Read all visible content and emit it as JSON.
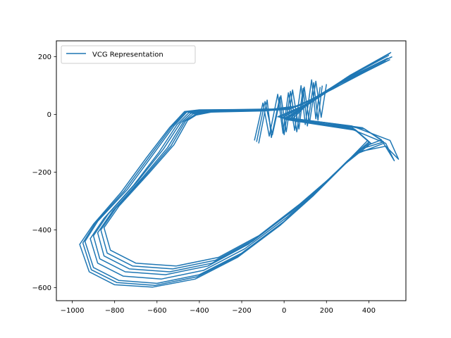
{
  "chart_data": {
    "type": "line",
    "title": "",
    "xlabel": "",
    "ylabel": "",
    "xlim": [
      -1075,
      575
    ],
    "ylim": [
      -645,
      255
    ],
    "xticks": [
      -1000,
      -800,
      -600,
      -400,
      -200,
      0,
      200,
      400
    ],
    "yticks": [
      -600,
      -400,
      -200,
      0,
      200
    ],
    "xtick_labels": [
      "−1000",
      "−800",
      "−600",
      "−400",
      "−200",
      "0",
      "200",
      "400"
    ],
    "ytick_labels": [
      "−600",
      "−400",
      "−200",
      "0",
      "200"
    ],
    "grid": false,
    "legend_position": "upper-left",
    "series": [
      {
        "name": "VCG Representation",
        "color": "#1f77b4",
        "loops": [
          [
            [
              500,
              212
            ],
            [
              350,
              150
            ],
            [
              250,
              105
            ],
            [
              150,
              60
            ],
            [
              60,
              28
            ],
            [
              -60,
              18
            ],
            [
              -250,
              15
            ],
            [
              -390,
              14
            ],
            [
              -460,
              8
            ],
            [
              -520,
              -40
            ],
            [
              -620,
              -140
            ],
            [
              -740,
              -260
            ],
            [
              -880,
              -370
            ],
            [
              -940,
              -440
            ],
            [
              -900,
              -530
            ],
            [
              -780,
              -575
            ],
            [
              -600,
              -585
            ],
            [
              -400,
              -555
            ],
            [
              -200,
              -480
            ],
            [
              0,
              -370
            ],
            [
              150,
              -270
            ],
            [
              300,
              -160
            ],
            [
              400,
              -95
            ],
            [
              330,
              -50
            ],
            [
              150,
              -30
            ],
            [
              0,
              -15
            ],
            [
              120,
              40
            ],
            [
              300,
              130
            ],
            [
              500,
              212
            ]
          ],
          [
            [
              505,
              215
            ],
            [
              360,
              155
            ],
            [
              260,
              110
            ],
            [
              160,
              62
            ],
            [
              70,
              30
            ],
            [
              -50,
              19
            ],
            [
              -240,
              17
            ],
            [
              -400,
              16
            ],
            [
              -470,
              10
            ],
            [
              -540,
              -45
            ],
            [
              -650,
              -150
            ],
            [
              -770,
              -270
            ],
            [
              -900,
              -380
            ],
            [
              -965,
              -450
            ],
            [
              -920,
              -545
            ],
            [
              -800,
              -590
            ],
            [
              -620,
              -598
            ],
            [
              -420,
              -570
            ],
            [
              -220,
              -495
            ],
            [
              -20,
              -385
            ],
            [
              140,
              -280
            ],
            [
              290,
              -170
            ],
            [
              410,
              -100
            ],
            [
              340,
              -55
            ],
            [
              160,
              -35
            ],
            [
              10,
              -18
            ],
            [
              130,
              45
            ],
            [
              310,
              135
            ],
            [
              505,
              215
            ]
          ],
          [
            [
              495,
              205
            ],
            [
              340,
              145
            ],
            [
              240,
              100
            ],
            [
              140,
              56
            ],
            [
              50,
              26
            ],
            [
              -70,
              16
            ],
            [
              -260,
              13
            ],
            [
              -380,
              12
            ],
            [
              -450,
              6
            ],
            [
              -505,
              -35
            ],
            [
              -590,
              -130
            ],
            [
              -710,
              -245
            ],
            [
              -850,
              -360
            ],
            [
              -915,
              -430
            ],
            [
              -880,
              -515
            ],
            [
              -760,
              -560
            ],
            [
              -580,
              -570
            ],
            [
              -380,
              -540
            ],
            [
              -185,
              -465
            ],
            [
              15,
              -355
            ],
            [
              165,
              -258
            ],
            [
              315,
              -150
            ],
            [
              395,
              -90
            ],
            [
              320,
              -45
            ],
            [
              140,
              -28
            ],
            [
              -10,
              -12
            ],
            [
              110,
              36
            ],
            [
              290,
              125
            ],
            [
              495,
              205
            ]
          ],
          [
            [
              510,
              200
            ],
            [
              345,
              140
            ],
            [
              235,
              95
            ],
            [
              130,
              52
            ],
            [
              40,
              24
            ],
            [
              -80,
              15
            ],
            [
              -270,
              12
            ],
            [
              -370,
              11
            ],
            [
              -440,
              4
            ],
            [
              -490,
              -30
            ],
            [
              -570,
              -120
            ],
            [
              -690,
              -230
            ],
            [
              -830,
              -345
            ],
            [
              -900,
              -420
            ],
            [
              -870,
              -500
            ],
            [
              -750,
              -545
            ],
            [
              -560,
              -555
            ],
            [
              -360,
              -525
            ],
            [
              -170,
              -450
            ],
            [
              30,
              -340
            ],
            [
              180,
              -245
            ],
            [
              330,
              -140
            ],
            [
              470,
              -100
            ],
            [
              520,
              -160
            ],
            [
              480,
              -100
            ],
            [
              300,
              -45
            ],
            [
              120,
              -25
            ],
            [
              -20,
              -10
            ],
            [
              100,
              32
            ],
            [
              280,
              120
            ],
            [
              510,
              200
            ]
          ],
          [
            [
              490,
              195
            ],
            [
              330,
              135
            ],
            [
              225,
              92
            ],
            [
              125,
              50
            ],
            [
              35,
              22
            ],
            [
              -90,
              14
            ],
            [
              -280,
              11
            ],
            [
              -360,
              10
            ],
            [
              -430,
              2
            ],
            [
              -475,
              -25
            ],
            [
              -550,
              -115
            ],
            [
              -670,
              -220
            ],
            [
              -810,
              -335
            ],
            [
              -880,
              -410
            ],
            [
              -850,
              -490
            ],
            [
              -730,
              -535
            ],
            [
              -540,
              -545
            ],
            [
              -340,
              -515
            ],
            [
              -150,
              -440
            ],
            [
              45,
              -330
            ],
            [
              195,
              -235
            ],
            [
              345,
              -130
            ],
            [
              480,
              -110
            ],
            [
              540,
              -155
            ],
            [
              500,
              -90
            ],
            [
              320,
              -40
            ],
            [
              130,
              -22
            ],
            [
              -30,
              -8
            ],
            [
              90,
              30
            ],
            [
              270,
              115
            ],
            [
              490,
              195
            ]
          ],
          [
            [
              500,
              190
            ],
            [
              335,
              130
            ],
            [
              230,
              88
            ],
            [
              120,
              48
            ],
            [
              30,
              20
            ],
            [
              -100,
              13
            ],
            [
              -290,
              10
            ],
            [
              -350,
              9
            ],
            [
              -420,
              0
            ],
            [
              -465,
              -22
            ],
            [
              -535,
              -110
            ],
            [
              -655,
              -212
            ],
            [
              -795,
              -325
            ],
            [
              -865,
              -400
            ],
            [
              -835,
              -480
            ],
            [
              -715,
              -525
            ],
            [
              -525,
              -535
            ],
            [
              -325,
              -505
            ],
            [
              -135,
              -430
            ],
            [
              60,
              -320
            ],
            [
              210,
              -225
            ],
            [
              360,
              -120
            ],
            [
              470,
              -95
            ],
            [
              380,
              -50
            ],
            [
              200,
              -30
            ],
            [
              40,
              -15
            ],
            [
              100,
              28
            ],
            [
              265,
              110
            ],
            [
              500,
              190
            ]
          ],
          [
            [
              480,
              185
            ],
            [
              325,
              125
            ],
            [
              220,
              85
            ],
            [
              115,
              46
            ],
            [
              25,
              18
            ],
            [
              -110,
              12
            ],
            [
              -300,
              9
            ],
            [
              -345,
              8
            ],
            [
              -415,
              -2
            ],
            [
              -455,
              -20
            ],
            [
              -520,
              -105
            ],
            [
              -640,
              -205
            ],
            [
              -780,
              -318
            ],
            [
              -850,
              -392
            ],
            [
              -820,
              -470
            ],
            [
              -700,
              -515
            ],
            [
              -510,
              -525
            ],
            [
              -310,
              -495
            ],
            [
              -120,
              -420
            ],
            [
              75,
              -310
            ],
            [
              225,
              -215
            ],
            [
              375,
              -112
            ],
            [
              460,
              -88
            ],
            [
              370,
              -46
            ],
            [
              190,
              -28
            ],
            [
              30,
              -13
            ],
            [
              95,
              26
            ],
            [
              260,
              105
            ],
            [
              480,
              185
            ]
          ],
          [
            [
              495,
              210
            ],
            [
              355,
              152
            ],
            [
              255,
              108
            ],
            [
              155,
              61
            ],
            [
              65,
              29
            ],
            [
              -55,
              18
            ],
            [
              -245,
              16
            ],
            [
              -395,
              15
            ],
            [
              -465,
              9
            ],
            [
              -530,
              -42
            ],
            [
              -635,
              -145
            ],
            [
              -755,
              -265
            ],
            [
              -890,
              -375
            ],
            [
              -950,
              -445
            ],
            [
              -910,
              -538
            ],
            [
              -790,
              -582
            ],
            [
              -610,
              -592
            ],
            [
              -410,
              -562
            ],
            [
              -210,
              -488
            ],
            [
              -10,
              -378
            ],
            [
              145,
              -275
            ],
            [
              295,
              -165
            ],
            [
              405,
              -97
            ],
            [
              335,
              -52
            ],
            [
              155,
              -32
            ],
            [
              5,
              -16
            ],
            [
              125,
              42
            ],
            [
              305,
              132
            ],
            [
              495,
              210
            ]
          ]
        ],
        "spikes": [
          [
            [
              -120,
              -100
            ],
            [
              -80,
              50
            ],
            [
              -60,
              -80
            ],
            [
              -20,
              60
            ],
            [
              0,
              -70
            ],
            [
              30,
              80
            ],
            [
              60,
              -60
            ],
            [
              90,
              90
            ],
            [
              110,
              -40
            ],
            [
              140,
              110
            ],
            [
              160,
              -20
            ],
            [
              180,
              100
            ]
          ],
          [
            [
              -140,
              -90
            ],
            [
              -100,
              40
            ],
            [
              -70,
              -75
            ],
            [
              -30,
              70
            ],
            [
              -5,
              -65
            ],
            [
              20,
              75
            ],
            [
              50,
              -55
            ],
            [
              80,
              100
            ],
            [
              100,
              -35
            ],
            [
              130,
              120
            ],
            [
              150,
              -15
            ],
            [
              170,
              95
            ]
          ],
          [
            [
              -130,
              -95
            ],
            [
              -90,
              45
            ],
            [
              -55,
              -70
            ],
            [
              -15,
              65
            ],
            [
              10,
              -60
            ],
            [
              40,
              85
            ],
            [
              70,
              -50
            ],
            [
              95,
              95
            ],
            [
              120,
              -30
            ],
            [
              150,
              115
            ],
            [
              175,
              -10
            ],
            [
              200,
              105
            ]
          ]
        ]
      }
    ]
  }
}
